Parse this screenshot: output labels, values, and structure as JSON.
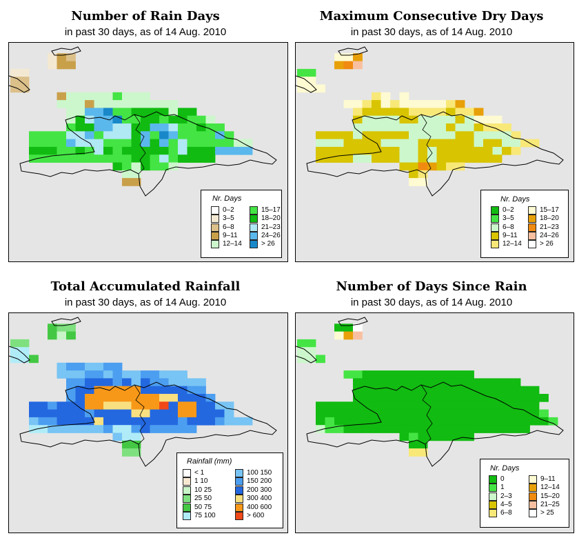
{
  "panels": [
    {
      "title": "Number of Rain Days",
      "subtitle": "in past 30 days, as of  14 Aug. 2010",
      "legend": {
        "title": "Nr. Days",
        "items": [
          {
            "label": "0–2",
            "color": "#ffffff"
          },
          {
            "label": "3–5",
            "color": "#f3e8d2"
          },
          {
            "label": "6–8",
            "color": "#dcc08a"
          },
          {
            "label": "9–11",
            "color": "#c9a04a"
          },
          {
            "label": "12–14",
            "color": "#ccf7cc"
          },
          {
            "label": "15–17",
            "color": "#44e444"
          },
          {
            "label": "18–20",
            "color": "#11bb11"
          },
          {
            "label": "21–23",
            "color": "#b0e8f4"
          },
          {
            "label": "24–26",
            "color": "#5ab8ec"
          },
          {
            "label": "> 26",
            "color": "#1888c8"
          }
        ]
      }
    },
    {
      "title": "Maximum Consecutive Dry Days",
      "subtitle": "in past 30 days, as of  14 Aug. 2010",
      "legend": {
        "title": "Nr. Days",
        "items": [
          {
            "label": "0–2",
            "color": "#11bb11"
          },
          {
            "label": "3–5",
            "color": "#44e444"
          },
          {
            "label": "6–8",
            "color": "#ccf7cc"
          },
          {
            "label": "9–11",
            "color": "#d8c400"
          },
          {
            "label": "12–14",
            "color": "#f8e878"
          },
          {
            "label": "15–17",
            "color": "#fefad2"
          },
          {
            "label": "18–20",
            "color": "#e8a008"
          },
          {
            "label": "21–23",
            "color": "#f08a10"
          },
          {
            "label": "24–26",
            "color": "#f8c0a0"
          },
          {
            "label": "> 26",
            "color": "#ffffff"
          }
        ]
      }
    },
    {
      "title": "Total Accumulated Rainfall",
      "subtitle": "in past 30 days, as of  14 Aug. 2010",
      "legend": {
        "title": "Rainfall (mm)",
        "items": [
          {
            "label": "< 1",
            "color": "#ffffff"
          },
          {
            "label": "1    10",
            "color": "#f8e8d2"
          },
          {
            "label": "10    25",
            "color": "#c8f4c8"
          },
          {
            "label": "25    50",
            "color": "#7ee07e"
          },
          {
            "label": "50    75",
            "color": "#44c844"
          },
          {
            "label": "75    100",
            "color": "#b0ecf8"
          },
          {
            "label": "100    150",
            "color": "#78c4f4"
          },
          {
            "label": "150    200",
            "color": "#4c9ef0"
          },
          {
            "label": "200    300",
            "color": "#2468e0"
          },
          {
            "label": "300    400",
            "color": "#f8e080"
          },
          {
            "label": "400    600",
            "color": "#f89818"
          },
          {
            "label": "> 600",
            "color": "#f04818"
          }
        ]
      }
    },
    {
      "title": "Number of Days Since Rain",
      "subtitle": "in past 30 days, as of  14 Aug. 2010",
      "legend": {
        "title": "Nr. Days",
        "items": [
          {
            "label": "0",
            "color": "#11bb11"
          },
          {
            "label": "1",
            "color": "#44e444"
          },
          {
            "label": "2–3",
            "color": "#ccf7cc"
          },
          {
            "label": "4–5",
            "color": "#d8c400"
          },
          {
            "label": "6–8",
            "color": "#f8e878"
          },
          {
            "label": "9–11",
            "color": "#fefad2"
          },
          {
            "label": "12–14",
            "color": "#e8a008"
          },
          {
            "label": "15–20",
            "color": "#f08a10"
          },
          {
            "label": "21–25",
            "color": "#f8c0a0"
          },
          {
            "label": "> 25",
            "color": "#ffffff"
          }
        ]
      }
    }
  ],
  "grids": [
    [
      ".............................",
      "....132......................",
      "....133......................",
      "11...........................",
      "22...........................",
      "22...........................",
      ".....3444445444..............",
      ".....4443444444444...........",
      "......44889556666466.........",
      "......4678895566566554.......",
      "......56688776688755655......",
      "..5555778577768598555585.....",
      "..555587775556868575555544...",
      "..666556576566666576668888...",
      "..55555555555665756666.......",
      "...........6546554...........",
      "............44...............",
      "............33..............."
    ],
    [
      ".............................",
      "....556......................",
      "....678......................",
      "11...........................",
      "55...........................",
      "555..........................",
      "........45.5.................",
      ".....5543545555546...........",
      "......43333344443446.........",
      "......3222233222232555.......",
      "......22222222223223444......",
      "..3333233333222223322224.....",
      "..222333322223333332332244...",
      "..3333333332232333333234...",
      "..33332233322323333333.......",
      "...........3376344...........",
      "............34...............",
      "............55..............."
    ],
    [
      ".............................",
      "....433......................",
      "....424......................",
      "33...........................",
      "55...........................",
      "554..........................",
      ".....6776677.................",
      ".....66677676677666..........",
      "......778887868776666........",
      "......788AAAAA8888877........",
      "......78AAAAAAAA998887.......",
      "..887888AA999AAAB8AA8866.....",
      "..8888887888899888AA8886.....",
      "..677888898888888878887666...",
      "..556666667557877777.........",
      "...........655...............",
      "............44...............",
      "............33..............."
    ],
    [
      ".............................",
      "....009......................",
      "....568......................",
      "11...........................",
      "22...........................",
      "221..........................",
      ".............................",
      ".....11000000000000..........",
      "......000000000000000000.....",
      "......00000000000000000000...",
      "......000000000000000000000..",
      "..000000000000000000000000...",
      "..0000000000000000000000001..",
      "..01000000000000000000000001.",
      "..21100000000000000000000....",
      "...........01000000...........",
      "............00...............",
      "............44..............."
    ]
  ]
}
